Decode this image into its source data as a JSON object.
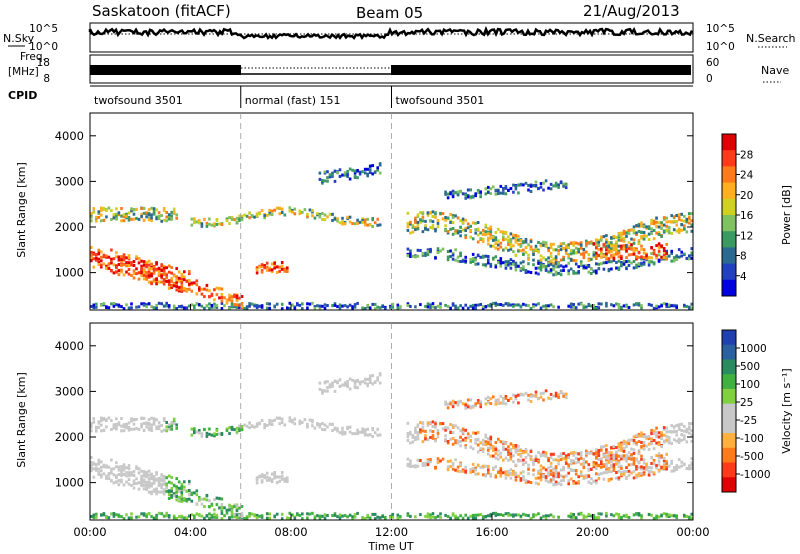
{
  "header": {
    "station": "Saskatoon (fitACF)",
    "beam": "Beam 05",
    "date": "21/Aug/2013"
  },
  "params": {
    "nsky_label": "N.Sky",
    "nsearch_label": "N.Search",
    "freq_label_1": "Freq.",
    "freq_label_2": "[MHz]",
    "nave_label": "Nave",
    "cpid_label": "CPID",
    "noise_ticks": [
      "10^5",
      "10^0"
    ],
    "freq_ticks": [
      "18",
      "8"
    ],
    "nave_ticks": [
      "60",
      "0"
    ]
  },
  "cpid_segments": [
    {
      "label": "twofsound 3501",
      "start_hour": 0,
      "end_hour": 6.0
    },
    {
      "label": "normal (fast) 151",
      "start_hour": 6.0,
      "end_hour": 12.0
    },
    {
      "label": "twofsound 3501",
      "start_hour": 12.0,
      "end_hour": 24.0
    }
  ],
  "chart_data": [
    {
      "type": "heatmap",
      "name": "power",
      "ylabel": "Slant Range [km]",
      "xlabel": "Time UT",
      "xlim": [
        0,
        24
      ],
      "ylim": [
        180,
        4500
      ],
      "yticks": [
        "1000",
        "2000",
        "3000",
        "4000"
      ],
      "xticks": [
        "00:00",
        "04:00",
        "08:00",
        "12:00",
        "16:00",
        "20:00",
        "00:00"
      ],
      "colorbar": {
        "label": "Power [dB]",
        "ticks": [
          "28",
          "24",
          "20",
          "16",
          "12",
          "8",
          "4"
        ],
        "colors": [
          "#e00000",
          "#ff3a1a",
          "#ff7a1a",
          "#ffb020",
          "#d0d020",
          "#7fc060",
          "#3a9a60",
          "#2a6a90",
          "#2040c0",
          "#0000e0"
        ]
      },
      "features": [
        {
          "desc": "strong echo band",
          "t0": 0.0,
          "t1": 3.5,
          "r0": 800,
          "r1": 2000,
          "level_db": 24
        },
        {
          "desc": "arc to ground scatter",
          "t0": 2.5,
          "t1": 5.5,
          "r0": 300,
          "r1": 900,
          "level_db": 26
        },
        {
          "desc": "spike",
          "t0": 6.8,
          "t1": 7.6,
          "r0": 900,
          "r1": 1500,
          "level_db": 28
        },
        {
          "desc": "upper band",
          "t0": 4.5,
          "t1": 11.0,
          "r0": 2200,
          "r1": 2600,
          "level_db": 18
        },
        {
          "desc": "late band",
          "t0": 13.0,
          "t1": 24.0,
          "r0": 1200,
          "r1": 2400,
          "level_db": 16
        }
      ]
    },
    {
      "type": "heatmap",
      "name": "velocity",
      "ylabel": "Slant Range [km]",
      "xlabel": "Time UT",
      "xlim": [
        0,
        24
      ],
      "ylim": [
        180,
        4500
      ],
      "yticks": [
        "1000",
        "2000",
        "3000",
        "4000"
      ],
      "xticks": [
        "00:00",
        "04:00",
        "08:00",
        "12:00",
        "16:00",
        "20:00",
        "00:00"
      ],
      "colorbar": {
        "label": "Velocity [m s⁻¹]",
        "ticks": [
          "1000",
          "500",
          "100",
          "25",
          "-25",
          "-100",
          "-500",
          "-1000"
        ],
        "colors": [
          "#2040b0",
          "#2a60a0",
          "#2a8a60",
          "#40b040",
          "#80d040",
          "#c8c8c8",
          "#c8c8c8",
          "#ffb040",
          "#ff7a1a",
          "#ff3a1a",
          "#e00000"
        ]
      },
      "features": [
        {
          "desc": "ground scatter (grey)",
          "t0": 4.5,
          "t1": 11.5,
          "r0": 2200,
          "r1": 2700,
          "v": 0
        },
        {
          "desc": "positive velocity",
          "t0": 3.0,
          "t1": 5.5,
          "r0": 400,
          "r1": 1200,
          "v": 100
        },
        {
          "desc": "negative velocity",
          "t0": 14.0,
          "t1": 22.0,
          "r0": 1200,
          "r1": 2400,
          "v": -250
        }
      ]
    }
  ],
  "xaxis_title": "Time UT"
}
